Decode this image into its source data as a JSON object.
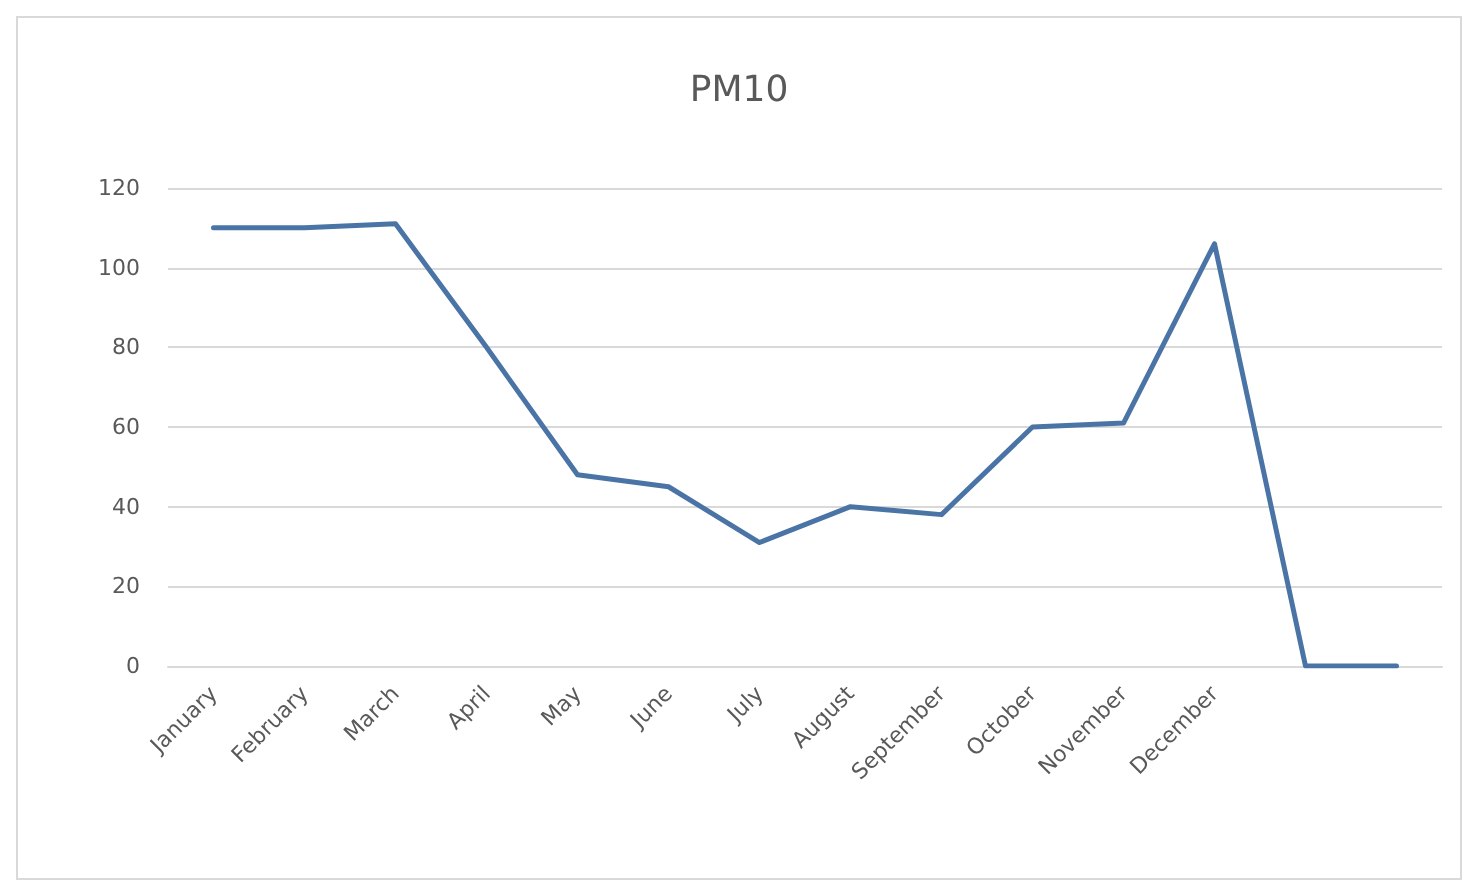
{
  "chart_data": {
    "type": "line",
    "title": "PM10",
    "categories": [
      "January",
      "February",
      "March",
      "April",
      "May",
      "June",
      "July",
      "August",
      "September",
      "October",
      "November",
      "December",
      null,
      null
    ],
    "values": [
      110,
      110,
      111,
      80,
      48,
      45,
      31,
      40,
      38,
      60,
      61,
      106,
      0,
      0
    ],
    "color": "#4a74a6",
    "ylim": [
      0,
      120
    ],
    "yticks": [
      0,
      20,
      40,
      60,
      80,
      100,
      120
    ],
    "grid": "y",
    "marker": "none",
    "line_style": "solid"
  }
}
